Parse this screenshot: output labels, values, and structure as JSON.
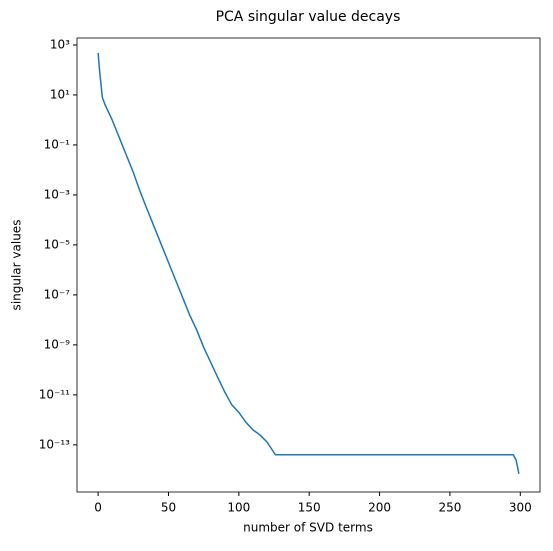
{
  "chart_data": {
    "type": "line",
    "title": "PCA singular value decays",
    "xlabel": "number of SVD terms",
    "ylabel": "singular values",
    "x": [
      0,
      1,
      3,
      5,
      10,
      15,
      20,
      25,
      30,
      35,
      40,
      45,
      50,
      55,
      60,
      65,
      70,
      75,
      80,
      85,
      90,
      95,
      100,
      105,
      110,
      115,
      120,
      126,
      200,
      295,
      297,
      299
    ],
    "series": [
      {
        "name": "singular values",
        "color": "#1f77b4",
        "values": [
          480,
          100,
          8,
          4,
          1,
          0.2,
          0.04,
          0.008,
          0.0013,
          0.00025,
          5e-05,
          1e-05,
          2e-06,
          4e-07,
          8e-08,
          1.6e-08,
          4e-09,
          8e-10,
          2e-10,
          5e-11,
          1.3e-11,
          4e-12,
          2e-12,
          8e-13,
          4e-13,
          2.5e-13,
          1.3e-13,
          4e-14,
          4e-14,
          4e-14,
          2.5e-14,
          7e-15
        ]
      }
    ],
    "xlim": [
      -15,
      314
    ],
    "xticks": [
      0,
      50,
      100,
      150,
      200,
      250,
      300
    ],
    "ylim": [
      1.3e-15,
      1900
    ],
    "yscale": "log",
    "yticks": [
      {
        "value": 1000,
        "label": "10³"
      },
      {
        "value": 10,
        "label": "10¹"
      },
      {
        "value": 0.1,
        "label": "10⁻¹"
      },
      {
        "value": 0.001,
        "label": "10⁻³"
      },
      {
        "value": 1e-05,
        "label": "10⁻⁵"
      },
      {
        "value": 1e-07,
        "label": "10⁻⁷"
      },
      {
        "value": 1e-09,
        "label": "10⁻⁹"
      },
      {
        "value": 1e-11,
        "label": "10⁻¹¹"
      },
      {
        "value": 1e-13,
        "label": "10⁻¹³"
      }
    ],
    "grid": false
  }
}
